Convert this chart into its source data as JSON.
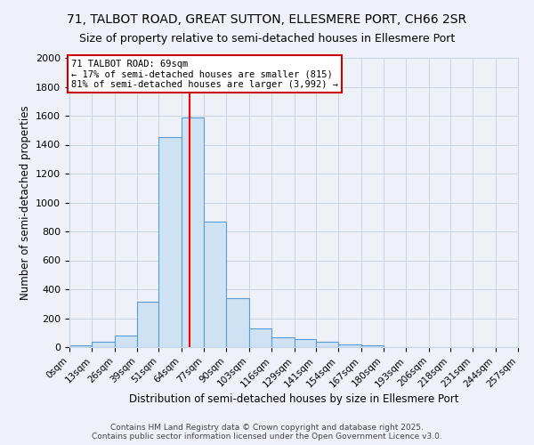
{
  "title_line1": "71, TALBOT ROAD, GREAT SUTTON, ELLESMERE PORT, CH66 2SR",
  "title_line2": "Size of property relative to semi-detached houses in Ellesmere Port",
  "xlabel": "Distribution of semi-detached houses by size in Ellesmere Port",
  "ylabel": "Number of semi-detached properties",
  "bin_labels": [
    "0sqm",
    "13sqm",
    "26sqm",
    "39sqm",
    "51sqm",
    "64sqm",
    "77sqm",
    "90sqm",
    "103sqm",
    "116sqm",
    "129sqm",
    "141sqm",
    "154sqm",
    "167sqm",
    "180sqm",
    "193sqm",
    "206sqm",
    "218sqm",
    "231sqm",
    "244sqm",
    "257sqm"
  ],
  "bin_edges": [
    0,
    13,
    26,
    39,
    51,
    64,
    77,
    90,
    103,
    116,
    129,
    141,
    154,
    167,
    180,
    193,
    206,
    218,
    231,
    244,
    257
  ],
  "bar_heights": [
    15,
    35,
    80,
    315,
    1455,
    1590,
    870,
    340,
    130,
    65,
    55,
    40,
    20,
    10,
    0,
    0,
    0,
    0,
    0,
    0
  ],
  "bar_fill": "#cfe2f3",
  "bar_edge": "#5b9bd5",
  "property_value": 69,
  "property_line_color": "red",
  "annotation_text": "71 TALBOT ROAD: 69sqm\n← 17% of semi-detached houses are smaller (815)\n81% of semi-detached houses are larger (3,992) →",
  "annotation_box_edge": "#cc0000",
  "annotation_box_fill": "white",
  "ylim": [
    0,
    2000
  ],
  "yticks": [
    0,
    200,
    400,
    600,
    800,
    1000,
    1200,
    1400,
    1600,
    1800,
    2000
  ],
  "grid_color": "#c8d4e8",
  "background_color": "#eef2f8",
  "footer": "Contains HM Land Registry data © Crown copyright and database right 2025.\nContains public sector information licensed under the Open Government Licence v3.0.",
  "title_fontsize": 10,
  "subtitle_fontsize": 9
}
